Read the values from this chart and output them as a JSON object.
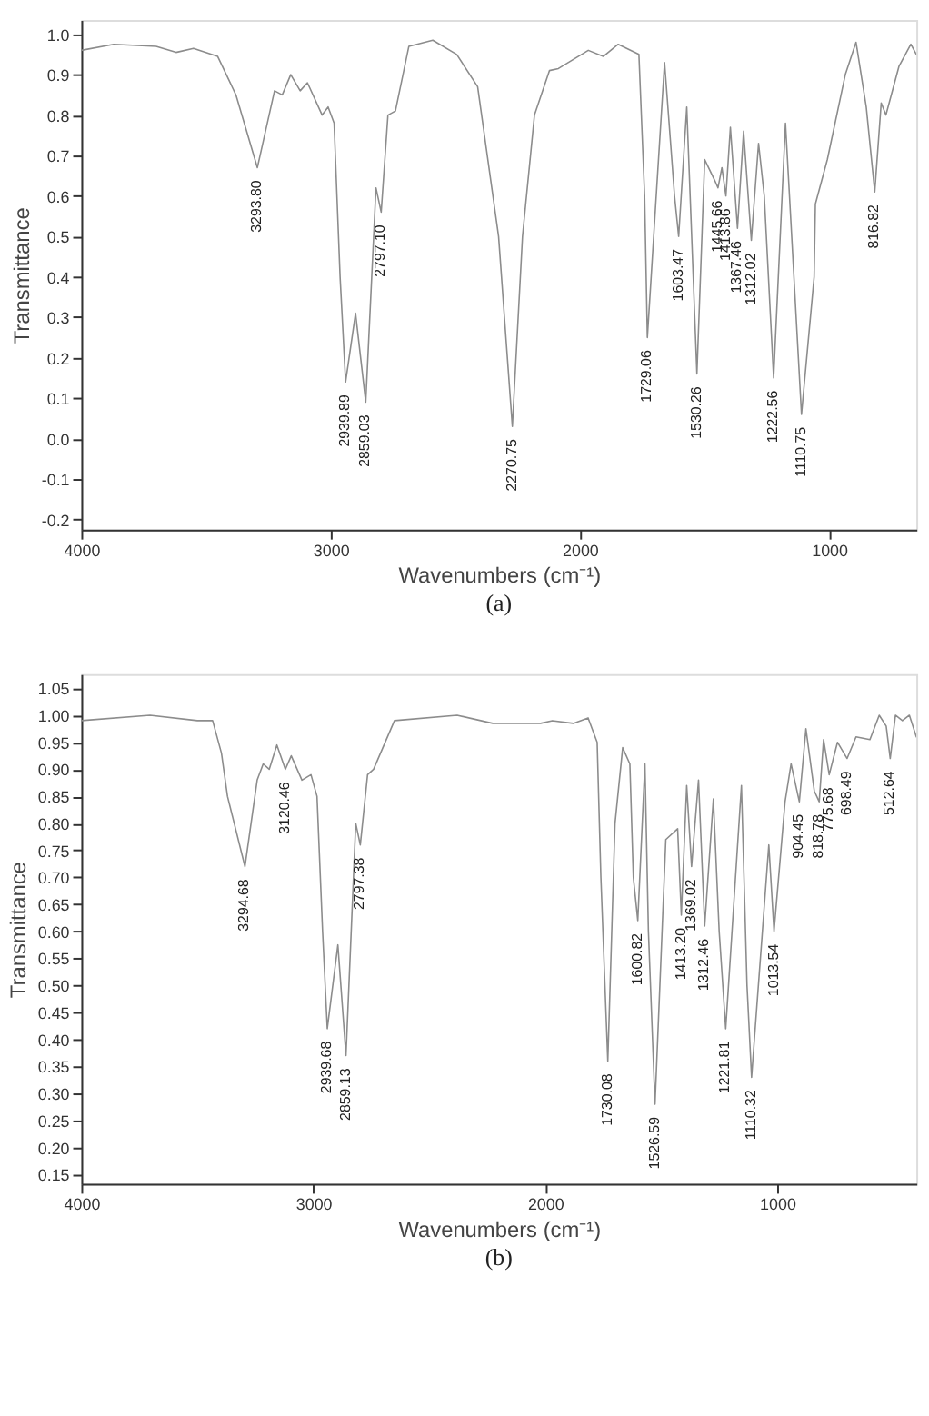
{
  "chart_data": [
    {
      "type": "line",
      "xlabel": "Wavenumbers (cm⁻¹)",
      "ylabel": "Transmittance",
      "annotations": [
        "(a)",
        {
          "text": "3293.80",
          "x": 3293.8,
          "y": 0.67
        },
        {
          "text": "2939.89",
          "x": 2939.89,
          "y": 0.14
        },
        {
          "text": "2859.03",
          "x": 2859.03,
          "y": 0.09
        },
        {
          "text": "2797.10",
          "x": 2797.1,
          "y": 0.56
        },
        {
          "text": "2270.75",
          "x": 2270.75,
          "y": 0.03
        },
        {
          "text": "1729.06",
          "x": 1729.06,
          "y": 0.25
        },
        {
          "text": "1603.47",
          "x": 1603.47,
          "y": 0.5
        },
        {
          "text": "1530.26",
          "x": 1530.26,
          "y": 0.16
        },
        {
          "text": "1445.66",
          "x": 1445.66,
          "y": 0.62
        },
        {
          "text": "1413.86",
          "x": 1413.86,
          "y": 0.6
        },
        {
          "text": "1367.46",
          "x": 1367.46,
          "y": 0.52
        },
        {
          "text": "1312.02",
          "x": 1312.02,
          "y": 0.49
        },
        {
          "text": "1222.56",
          "x": 1222.56,
          "y": 0.15
        },
        {
          "text": "1110.75",
          "x": 1110.75,
          "y": 0.06
        },
        {
          "text": "816.82",
          "x": 816.82,
          "y": 0.61
        }
      ],
      "series": [
        {
          "color": "#8c8c8c",
          "x": [
            4000,
            3870,
            3700,
            3620,
            3550,
            3453,
            3380,
            3293.8,
            3225,
            3194,
            3160,
            3122,
            3093,
            3034,
            3010,
            2986,
            2962,
            2939.89,
            2900,
            2859.03,
            2818,
            2797.1,
            2770,
            2740,
            2686,
            2590,
            2494,
            2410,
            2326,
            2270.75,
            2230,
            2182,
            2122,
            2086,
            1966,
            1906,
            1846,
            1763,
            1740,
            1729.06,
            1660,
            1620,
            1603.47,
            1571,
            1530.26,
            1499,
            1460,
            1445.66,
            1430,
            1413.86,
            1396,
            1367.46,
            1343,
            1312.02,
            1283,
            1260,
            1222.56,
            1175,
            1150,
            1110.75,
            1060,
            1055,
            1007,
            935,
            892,
            851,
            816.82,
            791,
            772,
            720,
            672,
            650
          ],
          "values": [
            0.96,
            0.975,
            0.97,
            0.955,
            0.965,
            0.945,
            0.85,
            0.67,
            0.86,
            0.85,
            0.9,
            0.86,
            0.88,
            0.8,
            0.82,
            0.78,
            0.4,
            0.14,
            0.31,
            0.09,
            0.62,
            0.56,
            0.8,
            0.81,
            0.97,
            0.985,
            0.95,
            0.87,
            0.5,
            0.03,
            0.5,
            0.8,
            0.91,
            0.915,
            0.96,
            0.945,
            0.975,
            0.95,
            0.6,
            0.25,
            0.93,
            0.6,
            0.5,
            0.82,
            0.16,
            0.69,
            0.64,
            0.62,
            0.67,
            0.6,
            0.77,
            0.52,
            0.76,
            0.49,
            0.73,
            0.6,
            0.15,
            0.78,
            0.5,
            0.06,
            0.4,
            0.58,
            0.69,
            0.9,
            0.98,
            0.82,
            0.61,
            0.83,
            0.8,
            0.92,
            0.975,
            0.95
          ]
        }
      ],
      "xlim": [
        4000,
        650
      ],
      "xticks": [
        4000,
        3000,
        2000,
        1000
      ],
      "ylim": [
        -0.225,
        1.035
      ],
      "yticks": [
        {
          "value": -0.2,
          "label": "-0.2"
        },
        {
          "value": -0.1,
          "label": "-0.1"
        },
        {
          "value": 0,
          "label": "0.0"
        },
        {
          "value": 0.1,
          "label": "0.1"
        },
        {
          "value": 0.2,
          "label": "0.2"
        },
        {
          "value": 0.3,
          "label": "0.3"
        },
        {
          "value": 0.4,
          "label": "0.4"
        },
        {
          "value": 0.5,
          "label": "0.5"
        },
        {
          "value": 0.6,
          "label": "0.6"
        },
        {
          "value": 0.7,
          "label": "0.7"
        },
        {
          "value": 0.8,
          "label": "0.8"
        },
        {
          "value": 0.9,
          "label": "0.9"
        },
        {
          "value": 1,
          "label": "1.0"
        }
      ],
      "grid": false,
      "marker": "none",
      "line_style": "solid"
    },
    {
      "type": "line",
      "xlabel": "Wavenumbers (cm⁻¹)",
      "ylabel": "Transmittance",
      "annotations": [
        "(b)",
        {
          "text": "3294.68",
          "x": 3294.68,
          "y": 0.72
        },
        {
          "text": "3120.46",
          "x": 3120.46,
          "y": 0.9
        },
        {
          "text": "2939.68",
          "x": 2939.68,
          "y": 0.42
        },
        {
          "text": "2859.13",
          "x": 2859.13,
          "y": 0.37
        },
        {
          "text": "2797.38",
          "x": 2797.38,
          "y": 0.76
        },
        {
          "text": "1730.08",
          "x": 1730.08,
          "y": 0.36
        },
        {
          "text": "1600.82",
          "x": 1600.82,
          "y": 0.62
        },
        {
          "text": "1526.59",
          "x": 1526.59,
          "y": 0.28
        },
        {
          "text": "1413.20",
          "x": 1413.2,
          "y": 0.63
        },
        {
          "text": "1369.02",
          "x": 1369.02,
          "y": 0.72
        },
        {
          "text": "1312.46",
          "x": 1312.46,
          "y": 0.61
        },
        {
          "text": "1221.81",
          "x": 1221.81,
          "y": 0.42
        },
        {
          "text": "1110.32",
          "x": 1110.32,
          "y": 0.33
        },
        {
          "text": "1013.54",
          "x": 1013.54,
          "y": 0.6
        },
        {
          "text": "904.45",
          "x": 904.45,
          "y": 0.84
        },
        {
          "text": "818.78",
          "x": 818.78,
          "y": 0.84
        },
        {
          "text": "775.68",
          "x": 775.68,
          "y": 0.89
        },
        {
          "text": "698.49",
          "x": 698.49,
          "y": 0.92
        },
        {
          "text": "512.64",
          "x": 512.64,
          "y": 0.92
        }
      ],
      "series": [
        {
          "color": "#8c8c8c",
          "x": [
            4000,
            3704,
            3500,
            3434,
            3396,
            3370,
            3294.68,
            3242,
            3216,
            3190,
            3157,
            3120.46,
            3095,
            3049,
            3010,
            2984,
            2960,
            2939.68,
            2894,
            2859.13,
            2817,
            2797.38,
            2766,
            2740,
            2650,
            2380,
            2226,
            2020,
            1969,
            1879,
            1815,
            1776,
            1760,
            1730.08,
            1699,
            1666,
            1635,
            1620,
            1600.82,
            1570,
            1555,
            1526.59,
            1480,
            1429,
            1413.2,
            1390,
            1369.02,
            1339,
            1312.46,
            1275,
            1250,
            1221.81,
            1154,
            1130,
            1110.32,
            1036,
            1013.54,
            966,
            940,
            904.45,
            876,
            840,
            818.78,
            800,
            775.68,
            740,
            698.49,
            660,
            600,
            560,
            530,
            512.64,
            490,
            460,
            430,
            400
          ],
          "values": [
            0.99,
            1.0,
            0.99,
            0.99,
            0.93,
            0.85,
            0.72,
            0.88,
            0.91,
            0.9,
            0.945,
            0.9,
            0.925,
            0.88,
            0.89,
            0.85,
            0.6,
            0.42,
            0.575,
            0.37,
            0.8,
            0.76,
            0.89,
            0.9,
            0.99,
            1.0,
            0.985,
            0.985,
            0.99,
            0.985,
            0.995,
            0.95,
            0.7,
            0.36,
            0.8,
            0.94,
            0.91,
            0.7,
            0.62,
            0.91,
            0.6,
            0.28,
            0.77,
            0.79,
            0.63,
            0.87,
            0.72,
            0.88,
            0.61,
            0.845,
            0.6,
            0.42,
            0.87,
            0.5,
            0.33,
            0.76,
            0.6,
            0.84,
            0.91,
            0.84,
            0.975,
            0.86,
            0.84,
            0.955,
            0.89,
            0.95,
            0.92,
            0.96,
            0.955,
            1.0,
            0.98,
            0.92,
            1.0,
            0.99,
            1.0,
            0.96
          ]
        }
      ],
      "xlim": [
        4000,
        400
      ],
      "xticks": [
        4000,
        3000,
        2000,
        1000
      ],
      "ylim": [
        0.133,
        1.076
      ],
      "yticks": [
        {
          "value": 0.15,
          "label": "0.15"
        },
        {
          "value": 0.2,
          "label": "0.20"
        },
        {
          "value": 0.25,
          "label": "0.25"
        },
        {
          "value": 0.3,
          "label": "0.30"
        },
        {
          "value": 0.35,
          "label": "0.35"
        },
        {
          "value": 0.4,
          "label": "0.40"
        },
        {
          "value": 0.45,
          "label": "0.45"
        },
        {
          "value": 0.5,
          "label": "0.50"
        },
        {
          "value": 0.55,
          "label": "0.55"
        },
        {
          "value": 0.6,
          "label": "0.60"
        },
        {
          "value": 0.65,
          "label": "0.65"
        },
        {
          "value": 0.7,
          "label": "0.70"
        },
        {
          "value": 0.75,
          "label": "0.75"
        },
        {
          "value": 0.8,
          "label": "0.80"
        },
        {
          "value": 0.85,
          "label": "0.85"
        },
        {
          "value": 0.9,
          "label": "0.90"
        },
        {
          "value": 0.95,
          "label": "0.95"
        },
        {
          "value": 1,
          "label": "1.00"
        },
        {
          "value": 1.05,
          "label": "1.05"
        }
      ],
      "grid": false,
      "marker": "none",
      "line_style": "solid"
    }
  ]
}
